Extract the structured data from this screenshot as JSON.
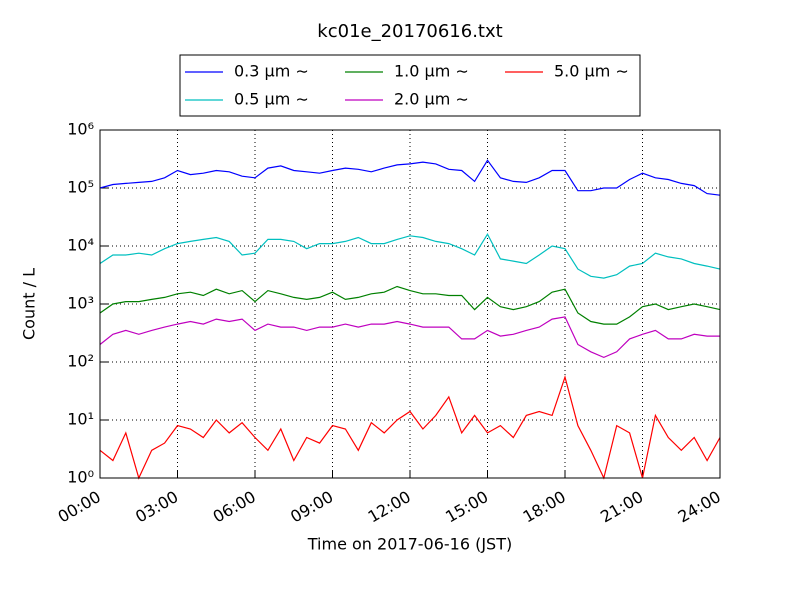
{
  "chart_data": {
    "type": "line",
    "title": "kc01e_20170616.txt",
    "x_label": "Time on 2017-06-16 (JST)",
    "y_label": "Count / L",
    "log_y": true,
    "grid": true,
    "legend": "top",
    "x": [
      0,
      0.5,
      1,
      1.5,
      2,
      2.5,
      3,
      3.5,
      4,
      4.5,
      5,
      5.5,
      6,
      6.5,
      7,
      7.5,
      8,
      8.5,
      9,
      9.5,
      10,
      10.5,
      11,
      11.5,
      12,
      12.5,
      13,
      13.5,
      14,
      14.5,
      15,
      15.5,
      16,
      16.5,
      17,
      17.5,
      18,
      18.5,
      19,
      19.5,
      20,
      20.5,
      21,
      21.5,
      22,
      22.5,
      23,
      23.5,
      24
    ],
    "xlim": [
      0,
      24
    ],
    "xticks": [
      {
        "value": 0,
        "label": "00:00"
      },
      {
        "value": 3,
        "label": "03:00"
      },
      {
        "value": 6,
        "label": "06:00"
      },
      {
        "value": 9,
        "label": "09:00"
      },
      {
        "value": 12,
        "label": "12:00"
      },
      {
        "value": 15,
        "label": "15:00"
      },
      {
        "value": 18,
        "label": "18:00"
      },
      {
        "value": 21,
        "label": "21:00"
      },
      {
        "value": 24,
        "label": "24:00"
      }
    ],
    "ylim": [
      1,
      1000000
    ],
    "yticks": [
      {
        "value": 1,
        "label": "10⁰"
      },
      {
        "value": 10,
        "label": "10¹"
      },
      {
        "value": 100,
        "label": "10²"
      },
      {
        "value": 1000,
        "label": "10³"
      },
      {
        "value": 10000,
        "label": "10⁴"
      },
      {
        "value": 100000,
        "label": "10⁵"
      },
      {
        "value": 1000000,
        "label": "10⁶"
      }
    ],
    "series": [
      {
        "name": "0.3 μm ∼",
        "color": "#0000ff",
        "values": [
          100000,
          115000,
          120000,
          125000,
          130000,
          150000,
          200000,
          170000,
          180000,
          200000,
          190000,
          160000,
          150000,
          220000,
          240000,
          200000,
          190000,
          180000,
          200000,
          220000,
          210000,
          190000,
          220000,
          250000,
          260000,
          280000,
          260000,
          210000,
          200000,
          130000,
          300000,
          150000,
          130000,
          125000,
          150000,
          200000,
          200000,
          90000,
          90000,
          100000,
          100000,
          140000,
          180000,
          150000,
          140000,
          120000,
          110000,
          80000,
          75000
        ]
      },
      {
        "name": "0.5 μm ∼",
        "color": "#00bfbf",
        "values": [
          5000,
          7000,
          7000,
          7500,
          7000,
          9000,
          11000,
          12000,
          13000,
          14000,
          12000,
          7000,
          7500,
          13000,
          13000,
          12000,
          9000,
          11000,
          11000,
          12000,
          14000,
          11000,
          11000,
          13000,
          15000,
          14000,
          12000,
          11000,
          9000,
          7000,
          16000,
          6000,
          5500,
          5000,
          7000,
          10000,
          9000,
          4000,
          3000,
          2800,
          3200,
          4500,
          5000,
          7500,
          6500,
          6000,
          5000,
          4500,
          4000
        ]
      },
      {
        "name": "1.0 μm ∼",
        "color": "#008000",
        "values": [
          700,
          1000,
          1100,
          1100,
          1200,
          1300,
          1500,
          1600,
          1400,
          1800,
          1500,
          1700,
          1100,
          1700,
          1500,
          1300,
          1200,
          1300,
          1600,
          1200,
          1300,
          1500,
          1600,
          2000,
          1700,
          1500,
          1500,
          1400,
          1400,
          800,
          1300,
          900,
          800,
          900,
          1100,
          1600,
          1800,
          700,
          500,
          450,
          450,
          600,
          900,
          1000,
          800,
          900,
          1000,
          900,
          800
        ]
      },
      {
        "name": "2.0 μm ∼",
        "color": "#bf00bf",
        "values": [
          200,
          300,
          350,
          300,
          350,
          400,
          450,
          500,
          450,
          550,
          500,
          550,
          350,
          450,
          400,
          400,
          350,
          400,
          400,
          450,
          400,
          450,
          450,
          500,
          450,
          400,
          400,
          400,
          250,
          250,
          350,
          280,
          300,
          350,
          400,
          550,
          600,
          200,
          150,
          120,
          150,
          250,
          300,
          350,
          250,
          250,
          300,
          280,
          280
        ]
      },
      {
        "name": "5.0 μm ∼",
        "color": "#ff0000",
        "values": [
          3,
          2,
          6,
          1,
          3,
          4,
          8,
          7,
          5,
          10,
          6,
          9,
          5,
          3,
          7,
          2,
          5,
          4,
          8,
          7,
          3,
          9,
          6,
          10,
          14,
          7,
          12,
          25,
          6,
          12,
          6,
          8,
          5,
          12,
          14,
          12,
          55,
          8,
          3,
          1,
          8,
          6,
          1,
          12,
          5,
          3,
          5,
          2,
          5
        ]
      }
    ]
  }
}
